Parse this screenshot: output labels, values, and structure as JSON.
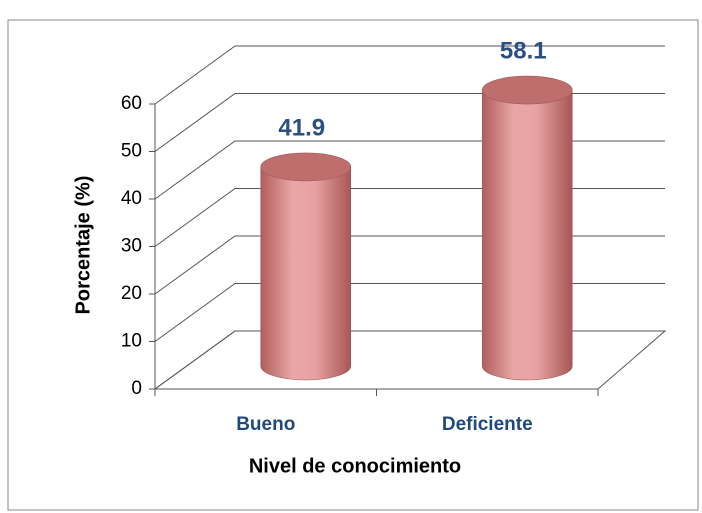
{
  "chart_data": {
    "type": "bar3d",
    "xlabel": "Nivel de conocimiento",
    "ylabel": "Porcentaje (%)",
    "categories": [
      "Bueno",
      "Deficiente"
    ],
    "values": [
      41.9,
      58.1
    ],
    "color": "#e29a9a",
    "ylim": [
      0,
      60
    ],
    "yticks": [
      0,
      10,
      20,
      30,
      40,
      50,
      60
    ],
    "grid": true
  }
}
